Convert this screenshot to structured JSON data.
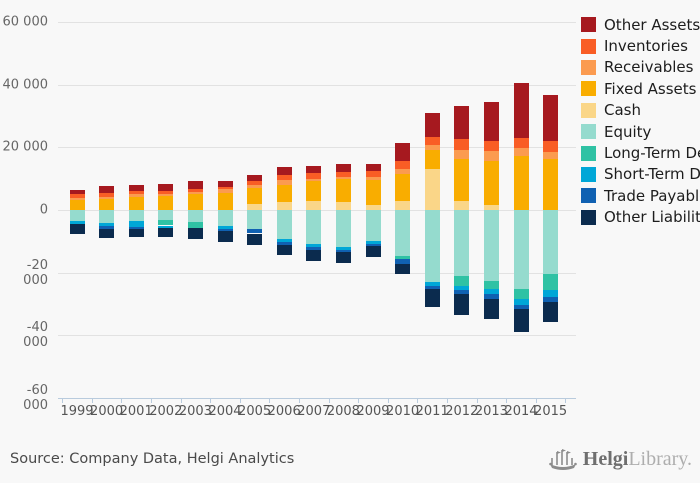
{
  "chart_data": {
    "type": "bar",
    "subtype": "stacked-diverging",
    "title": "",
    "xlabel": "",
    "ylabel": "",
    "grid": true,
    "legend_position": "top-right",
    "ylim": [
      -60000,
      60000
    ],
    "yticks": [
      {
        "value": 60000,
        "label": "60 000"
      },
      {
        "value": 40000,
        "label": "40 000"
      },
      {
        "value": 20000,
        "label": "20 000"
      },
      {
        "value": 0,
        "label": "0"
      },
      {
        "value": -20000,
        "label": "-20 000"
      },
      {
        "value": -40000,
        "label": "-40 000"
      },
      {
        "value": -60000,
        "label": "-60 000"
      }
    ],
    "categories": [
      "1999",
      "2000",
      "2001",
      "2002",
      "2003",
      "2004",
      "2005",
      "2006",
      "2007",
      "2008",
      "2009",
      "2010",
      "2011",
      "2012",
      "2013",
      "2014",
      "2015"
    ],
    "series": [
      {
        "key": "cash",
        "name": "Cash",
        "side": "positive",
        "color": "#FAD688",
        "values": [
          0,
          0,
          0,
          0,
          0,
          0,
          2000,
          2600,
          2850,
          2400,
          1550,
          2950,
          13000,
          2800,
          1500,
          0,
          0
        ]
      },
      {
        "key": "fixed-assets",
        "name": "Fixed Assets",
        "side": "positive",
        "color": "#F9AD00",
        "values": [
          3200,
          3600,
          4300,
          4500,
          5150,
          5550,
          5050,
          5450,
          6300,
          7350,
          8000,
          8500,
          6100,
          13400,
          14150,
          17250,
          16200
        ]
      },
      {
        "key": "receivables",
        "name": "Receivables",
        "side": "positive",
        "color": "#FB9B50",
        "values": [
          650,
          650,
          650,
          650,
          650,
          1050,
          1050,
          1500,
          650,
          850,
          1050,
          1600,
          1800,
          3000,
          3150,
          2600,
          2300
        ]
      },
      {
        "key": "inventories",
        "name": "Inventories",
        "side": "positive",
        "color": "#F95D25",
        "values": [
          1250,
          1250,
          1050,
          1050,
          1050,
          850,
          1250,
          1700,
          1900,
          1450,
          1700,
          2650,
          2400,
          3500,
          3150,
          3150,
          3450
        ]
      },
      {
        "key": "other-assets",
        "name": "Other Assets",
        "side": "positive",
        "color": "#A6191F",
        "values": [
          1300,
          2100,
          1900,
          2100,
          2300,
          1700,
          1900,
          2500,
          2300,
          2750,
          2300,
          5600,
          7500,
          10500,
          12400,
          17500,
          14700
        ]
      },
      {
        "key": "equity",
        "name": "Equity",
        "side": "negative",
        "color": "#95DBCE",
        "values": [
          3550,
          4000,
          3450,
          3050,
          3700,
          5100,
          6100,
          9300,
          11000,
          11850,
          9900,
          14800,
          23000,
          21100,
          22700,
          25300,
          20400
        ]
      },
      {
        "key": "long-term-debt",
        "name": "Long-Term Debt",
        "side": "negative",
        "color": "#2FC2A4",
        "values": [
          0,
          0,
          0,
          1900,
          1900,
          0,
          0,
          0,
          0,
          0,
          0,
          850,
          0,
          3150,
          2600,
          3150,
          5250
        ]
      },
      {
        "key": "short-term-debt",
        "name": "Short-Term Debt",
        "side": "negative",
        "color": "#00A7D7",
        "values": [
          850,
          1050,
          2100,
          650,
          0,
          850,
          0,
          900,
          850,
          1050,
          800,
          0,
          1250,
          1250,
          1600,
          1800,
          2100
        ]
      },
      {
        "key": "trade-payables",
        "name": "Trade Payables",
        "side": "negative",
        "color": "#1061B2",
        "values": [
          0,
          1050,
          650,
          0,
          300,
          850,
          1400,
          900,
          850,
          650,
          800,
          1450,
          1050,
          1250,
          1600,
          1500,
          1500
        ]
      },
      {
        "key": "other-liabilities",
        "name": "Other Liabilities",
        "side": "negative",
        "color": "#0B2B4E",
        "values": [
          3350,
          2950,
          2300,
          3150,
          3450,
          3350,
          3600,
          3200,
          3700,
          3450,
          3350,
          3450,
          5750,
          6900,
          6300,
          7200,
          6600
        ]
      }
    ]
  },
  "legend": {
    "items": [
      {
        "key": "other-assets",
        "label": "Other Assets",
        "color": "#A6191F"
      },
      {
        "key": "inventories",
        "label": "Inventories",
        "color": "#F95D25"
      },
      {
        "key": "receivables",
        "label": "Receivables",
        "color": "#FB9B50"
      },
      {
        "key": "fixed-assets",
        "label": "Fixed Assets",
        "color": "#F9AD00"
      },
      {
        "key": "cash",
        "label": "Cash",
        "color": "#FAD688"
      },
      {
        "key": "equity",
        "label": "Equity",
        "color": "#95DBCE"
      },
      {
        "key": "long-term-debt",
        "label": "Long-Term Debt",
        "color": "#2FC2A4"
      },
      {
        "key": "short-term-debt",
        "label": "Short-Term Debt",
        "color": "#00A7D7"
      },
      {
        "key": "trade-payables",
        "label": "Trade Payables",
        "color": "#1061B2"
      },
      {
        "key": "other-liabilities",
        "label": "Other Liabilities",
        "color": "#0B2B4E"
      }
    ]
  },
  "footer": {
    "source": "Source: Company Data, Helgi Analytics",
    "logo_prefix": "Helgi",
    "logo_suffix": "Library."
  },
  "theme": {
    "background": "#f8f8f8",
    "gridline": "#e2e2e2",
    "axis": "#b9cbdd",
    "ytick_text": "#666666",
    "xtick_text": "#555555",
    "legend_text": "#1d1d1d",
    "source_text": "#4a4a4a",
    "logo_dark": "#6f6f6f",
    "logo_light": "#aeaeae"
  }
}
